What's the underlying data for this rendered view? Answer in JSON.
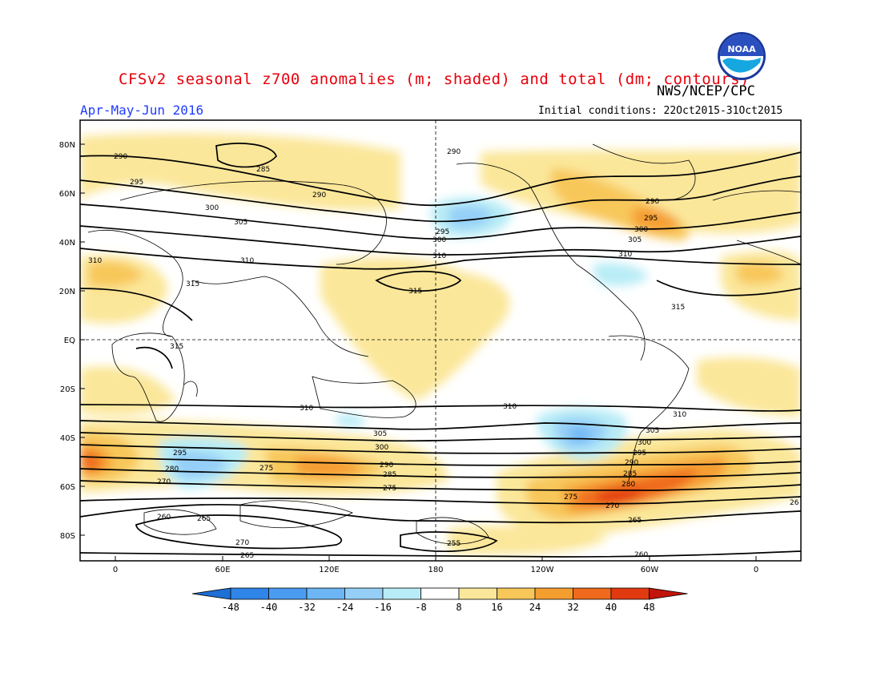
{
  "title": "CFSv2 seasonal z700 anomalies (m; shaded) and total (dm; contours)",
  "agency": "NWS/NCEP/CPC",
  "season": "Apr-May-Jun 2016",
  "initial_conditions": "Initial conditions: 22Oct2015-31Oct2015",
  "logo_text": "NOAA",
  "lat_labels": [
    "80N",
    "60N",
    "40N",
    "20N",
    "EQ",
    "20S",
    "40S",
    "60S",
    "80S"
  ],
  "lon_labels": [
    "0",
    "60E",
    "120E",
    "180",
    "120W",
    "60W",
    "0"
  ],
  "colorbar": {
    "labels": [
      "-48",
      "-40",
      "-32",
      "-24",
      "-16",
      "-8",
      "8",
      "16",
      "24",
      "32",
      "40",
      "48"
    ],
    "colors": [
      "#1e6fd6",
      "#2f85e8",
      "#4a9cf0",
      "#6db6f5",
      "#95cff8",
      "#b8ecf6",
      "#ffffff",
      "#fbe79a",
      "#f8c75a",
      "#f59e30",
      "#ef6a1c",
      "#e23a10",
      "#c0140c"
    ]
  },
  "contour_labels": [
    {
      "text": "290"
    },
    {
      "text": "285"
    },
    {
      "text": "295"
    },
    {
      "text": "300"
    },
    {
      "text": "290"
    },
    {
      "text": "305"
    },
    {
      "text": "310"
    },
    {
      "text": "315"
    },
    {
      "text": "310"
    },
    {
      "text": "290"
    },
    {
      "text": "295"
    },
    {
      "text": "300"
    },
    {
      "text": "310"
    },
    {
      "text": "315"
    },
    {
      "text": "290"
    },
    {
      "text": "295"
    },
    {
      "text": "300"
    },
    {
      "text": "305"
    },
    {
      "text": "310"
    },
    {
      "text": "315"
    },
    {
      "text": "310"
    },
    {
      "text": "310"
    },
    {
      "text": "315"
    },
    {
      "text": "305"
    },
    {
      "text": "300"
    },
    {
      "text": "295"
    },
    {
      "text": "290"
    },
    {
      "text": "285"
    },
    {
      "text": "280"
    },
    {
      "text": "270"
    },
    {
      "text": "260"
    },
    {
      "text": "265"
    },
    {
      "text": "270"
    },
    {
      "text": "265"
    },
    {
      "text": "275"
    },
    {
      "text": "275"
    },
    {
      "text": "255"
    },
    {
      "text": "260"
    },
    {
      "text": "275"
    },
    {
      "text": "270"
    },
    {
      "text": "265"
    },
    {
      "text": "280"
    },
    {
      "text": "285"
    },
    {
      "text": "290"
    },
    {
      "text": "295"
    },
    {
      "text": "300"
    },
    {
      "text": "305"
    },
    {
      "text": "310"
    },
    {
      "text": "26"
    }
  ]
}
